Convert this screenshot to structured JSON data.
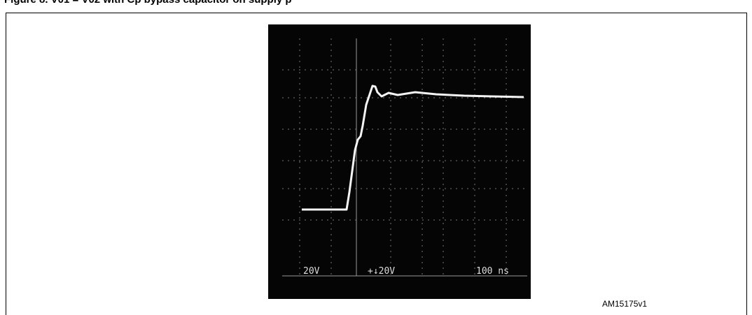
{
  "header": {
    "title": "Figure 8. V01 = V02 with Cp bypass capacitor on supply p"
  },
  "scope": {
    "labels": [
      "20V",
      "+↓20V",
      "100 ns"
    ]
  },
  "figure_id": "AM15175v1"
}
